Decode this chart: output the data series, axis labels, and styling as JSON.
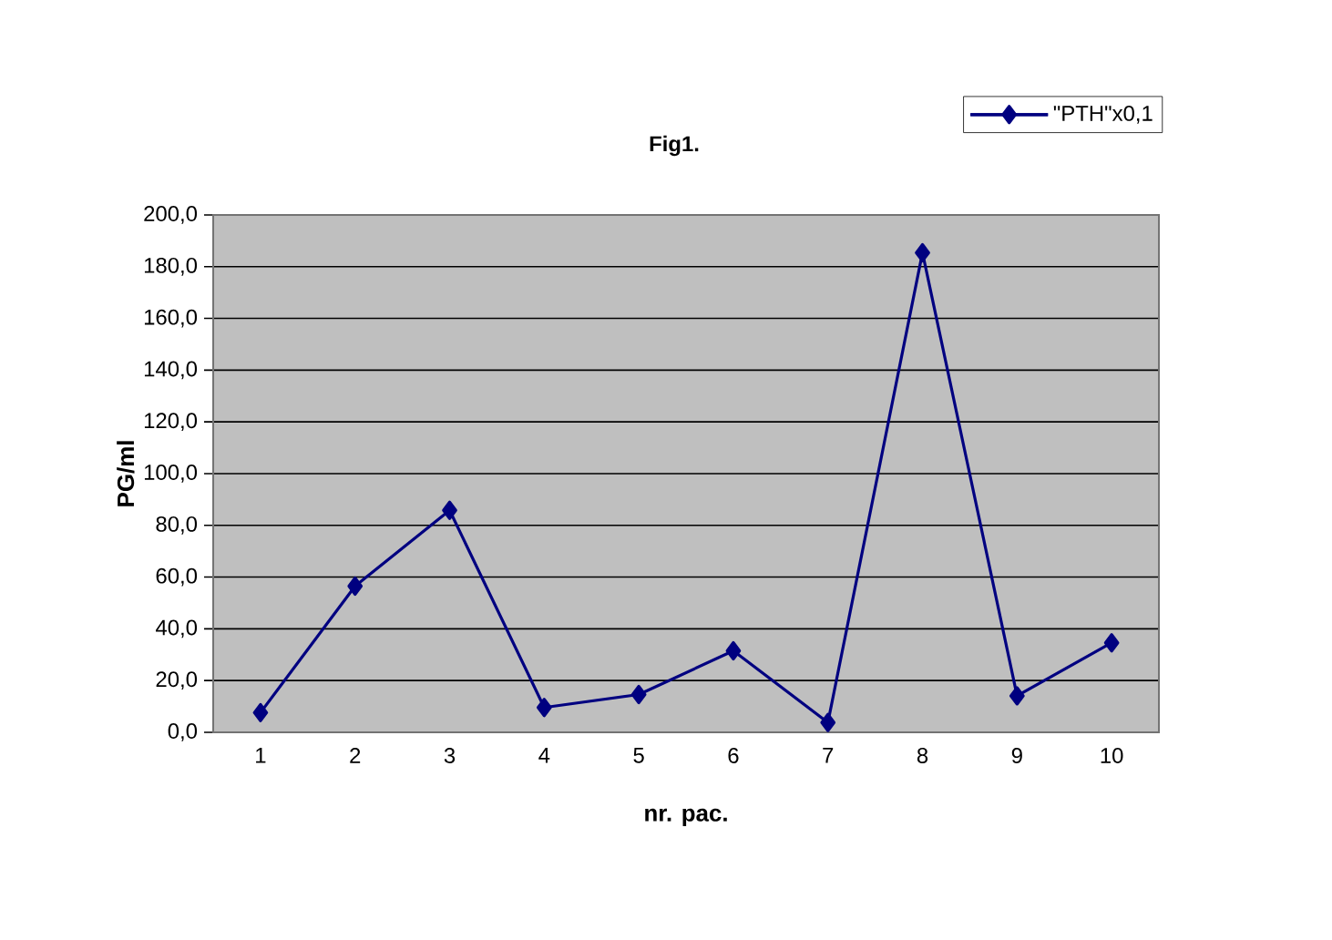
{
  "chart_data": {
    "type": "line",
    "title": "Fig1.",
    "xlabel": "nr. pac.",
    "ylabel": "PG/ml",
    "categories": [
      "1",
      "2",
      "3",
      "4",
      "5",
      "6",
      "7",
      "8",
      "9",
      "10"
    ],
    "series": [
      {
        "name": "\"PTH\"x0,1",
        "color": "#000080",
        "values": [
          7.6,
          56.5,
          85.8,
          9.6,
          14.6,
          31.5,
          3.8,
          185.4,
          14.1,
          34.6
        ]
      }
    ],
    "ylim": [
      0,
      200
    ],
    "yticks": [
      {
        "value": 0,
        "label": "0,0"
      },
      {
        "value": 20,
        "label": "20,0"
      },
      {
        "value": 40,
        "label": "40,0"
      },
      {
        "value": 60,
        "label": "60,0"
      },
      {
        "value": 80,
        "label": "80,0"
      },
      {
        "value": 100,
        "label": "100,0"
      },
      {
        "value": 120,
        "label": "120,0"
      },
      {
        "value": 140,
        "label": "140,0"
      },
      {
        "value": 160,
        "label": "160,0"
      },
      {
        "value": 180,
        "label": "180,0"
      },
      {
        "value": 200,
        "label": "200,0"
      }
    ],
    "grid": "y",
    "legend": "top right",
    "marker": "diamond",
    "line_style": "solid"
  }
}
